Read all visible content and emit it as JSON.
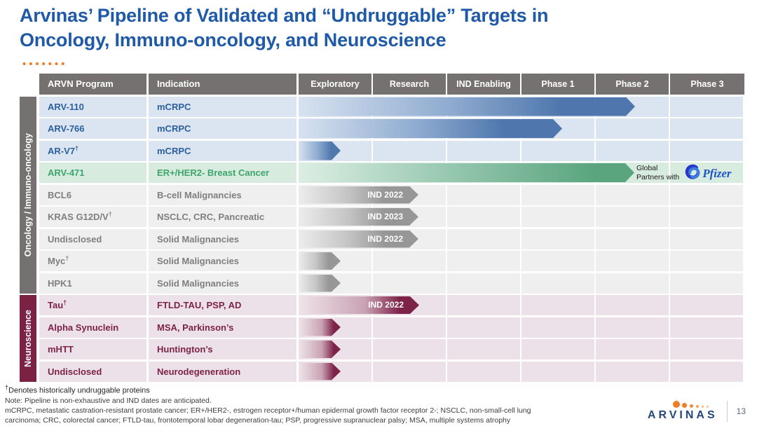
{
  "slide": {
    "title_lines": [
      "Arvinas’ Pipeline of Validated and “Undruggable” Targets in",
      "Oncology, Immuno-oncology, and Neuroscience"
    ],
    "brand_name": "ARVINAS",
    "page_number": "13"
  },
  "symbols": {
    "dagger": "†"
  },
  "header": {
    "program": "ARVN Program",
    "indication": "Indication",
    "phases": [
      "Exploratory",
      "Research",
      "IND Enabling",
      "Phase 1",
      "Phase 2",
      "Phase 3"
    ]
  },
  "groups": {
    "oncology": {
      "label": "Oncology / Immuno-oncology"
    },
    "neuroscience": {
      "label": "Neuroscience"
    }
  },
  "rows": [
    {
      "program": "ARV-110",
      "dagger": false,
      "indication": "mCRPC",
      "theme": "blue",
      "bar": {
        "cols": 4.53,
        "label": ""
      },
      "annotation": false
    },
    {
      "program": "ARV-766",
      "dagger": false,
      "indication": "mCRPC",
      "theme": "blue",
      "bar": {
        "cols": 3.55,
        "label": ""
      },
      "annotation": false
    },
    {
      "program": "AR-V7",
      "dagger": true,
      "indication": "mCRPC",
      "theme": "blue",
      "bar": {
        "cols": 0.57,
        "label": ""
      },
      "annotation": false
    },
    {
      "program": "ARV-471",
      "dagger": false,
      "indication": "ER+/HER2- Breast Cancer",
      "theme": "green",
      "bar": {
        "cols": 4.52,
        "label": ""
      },
      "annotation": true
    },
    {
      "program": "BCL6",
      "dagger": false,
      "indication": "B-cell Malignancies",
      "theme": "gray",
      "bar": {
        "cols": 1.61,
        "label": "IND 2022"
      },
      "annotation": false
    },
    {
      "program": "KRAS G12D/V",
      "dagger": true,
      "indication": "NSCLC, CRC, Pancreatic",
      "theme": "gray",
      "bar": {
        "cols": 1.61,
        "label": "IND 2023"
      },
      "annotation": false
    },
    {
      "program": "Undisclosed",
      "dagger": false,
      "indication": "Solid Malignancies",
      "theme": "gray",
      "bar": {
        "cols": 1.61,
        "label": "IND 2022"
      },
      "annotation": false
    },
    {
      "program": "Myc",
      "dagger": true,
      "indication": "Solid Malignancies",
      "theme": "gray",
      "bar": {
        "cols": 0.57,
        "label": ""
      },
      "annotation": false
    },
    {
      "program": "HPK1",
      "dagger": false,
      "indication": "Solid Malignancies",
      "theme": "gray",
      "bar": {
        "cols": 0.57,
        "label": ""
      },
      "annotation": false
    },
    {
      "program": "Tau",
      "dagger": true,
      "indication": "FTLD-TAU, PSP, AD",
      "theme": "maroon",
      "bar": {
        "cols": 1.62,
        "label": "IND 2022"
      },
      "annotation": false
    },
    {
      "program": "Alpha Synuclein",
      "dagger": false,
      "indication": "MSA, Parkinson’s",
      "theme": "maroon",
      "bar": {
        "cols": 0.57,
        "label": ""
      },
      "annotation": false
    },
    {
      "program": "mHTT",
      "dagger": false,
      "indication": "Huntington’s",
      "theme": "maroon",
      "bar": {
        "cols": 0.57,
        "label": ""
      },
      "annotation": false
    },
    {
      "program": "Undisclosed",
      "dagger": false,
      "indication": "Neurodegeneration",
      "theme": "maroon",
      "bar": {
        "cols": 0.57,
        "label": ""
      },
      "annotation": false
    }
  ],
  "annotation": {
    "line1": "Global",
    "line2": "Partners with",
    "partner_name": "Pfizer"
  },
  "footnotes": {
    "dagger_note": "Denotes historically undruggable proteins",
    "note": "Note: Pipeline is non-exhaustive and IND dates are anticipated.",
    "abbrev_line1": "mCRPC, metastatic castration-resistant prostate cancer; ER+/HER2-, estrogen receptor+/human epidermal growth factor receptor 2-; NSCLC, non-small-cell lung",
    "abbrev_line2": "carcinoma; CRC, colorectal cancer; FTLD-tau, frontotemporal lobar degeneration-tau; PSP, progressive supranuclear palsy; MSA, multiple systems atrophy"
  },
  "colors": {
    "title_blue": "#1F5AA8",
    "header_gray": "#767171",
    "neuro_sidebar": "#7A2144",
    "blue_text": "#2B5F9E",
    "green_text": "#3DA56E",
    "gray_text": "#7F7F7F",
    "neuro_text": "#7D2248",
    "bar_blue": "#4F77AD",
    "bar_green": "#5AA57E",
    "bar_gray": "#979797",
    "bar_maroon": "#7D2248",
    "accent_orange": "#F07E26",
    "brand_navy": "#24477E",
    "pfizer_blue": "#1B54C8"
  },
  "chart_data": {
    "type": "table",
    "title": "Arvinas’ Pipeline of Validated and “Undruggable” Targets in Oncology, Immuno-oncology, and Neuroscience",
    "columns": [
      "ARVN Program",
      "Indication",
      "Exploratory",
      "Research",
      "IND Enabling",
      "Phase 1",
      "Phase 2",
      "Phase 3"
    ],
    "phase_axis": {
      "order": [
        "Exploratory",
        "Research",
        "IND Enabling",
        "Phase 1",
        "Phase 2",
        "Phase 3"
      ],
      "units": "phase columns (0-6)"
    },
    "rows": [
      {
        "group": "Oncology / Immuno-oncology",
        "program": "ARV-110",
        "indication": "mCRPC",
        "progress_phase_units": 4.53,
        "stage_reached": "Phase 2",
        "ind_label": null
      },
      {
        "group": "Oncology / Immuno-oncology",
        "program": "ARV-766",
        "indication": "mCRPC",
        "progress_phase_units": 3.55,
        "stage_reached": "Phase 1",
        "ind_label": null
      },
      {
        "group": "Oncology / Immuno-oncology",
        "program": "AR-V7†",
        "indication": "mCRPC",
        "progress_phase_units": 0.57,
        "stage_reached": "Exploratory",
        "ind_label": null
      },
      {
        "group": "Oncology / Immuno-oncology",
        "program": "ARV-471",
        "indication": "ER+/HER2- Breast Cancer",
        "progress_phase_units": 4.52,
        "stage_reached": "Phase 2",
        "ind_label": null,
        "partner": "Pfizer (Global Partners with)"
      },
      {
        "group": "Oncology / Immuno-oncology",
        "program": "BCL6",
        "indication": "B-cell Malignancies",
        "progress_phase_units": 1.61,
        "stage_reached": "Research",
        "ind_label": "IND 2022"
      },
      {
        "group": "Oncology / Immuno-oncology",
        "program": "KRAS G12D/V†",
        "indication": "NSCLC, CRC, Pancreatic",
        "progress_phase_units": 1.61,
        "stage_reached": "Research",
        "ind_label": "IND 2023"
      },
      {
        "group": "Oncology / Immuno-oncology",
        "program": "Undisclosed",
        "indication": "Solid Malignancies",
        "progress_phase_units": 1.61,
        "stage_reached": "Research",
        "ind_label": "IND 2022"
      },
      {
        "group": "Oncology / Immuno-oncology",
        "program": "Myc†",
        "indication": "Solid Malignancies",
        "progress_phase_units": 0.57,
        "stage_reached": "Exploratory",
        "ind_label": null
      },
      {
        "group": "Oncology / Immuno-oncology",
        "program": "HPK1",
        "indication": "Solid Malignancies",
        "progress_phase_units": 0.57,
        "stage_reached": "Exploratory",
        "ind_label": null
      },
      {
        "group": "Neuroscience",
        "program": "Tau†",
        "indication": "FTLD-TAU, PSP, AD",
        "progress_phase_units": 1.62,
        "stage_reached": "Research",
        "ind_label": "IND 2022"
      },
      {
        "group": "Neuroscience",
        "program": "Alpha Synuclein",
        "indication": "MSA, Parkinson’s",
        "progress_phase_units": 0.57,
        "stage_reached": "Exploratory",
        "ind_label": null
      },
      {
        "group": "Neuroscience",
        "program": "mHTT",
        "indication": "Huntington’s",
        "progress_phase_units": 0.57,
        "stage_reached": "Exploratory",
        "ind_label": null
      },
      {
        "group": "Neuroscience",
        "program": "Undisclosed",
        "indication": "Neurodegeneration",
        "progress_phase_units": 0.57,
        "stage_reached": "Exploratory",
        "ind_label": null
      }
    ]
  }
}
